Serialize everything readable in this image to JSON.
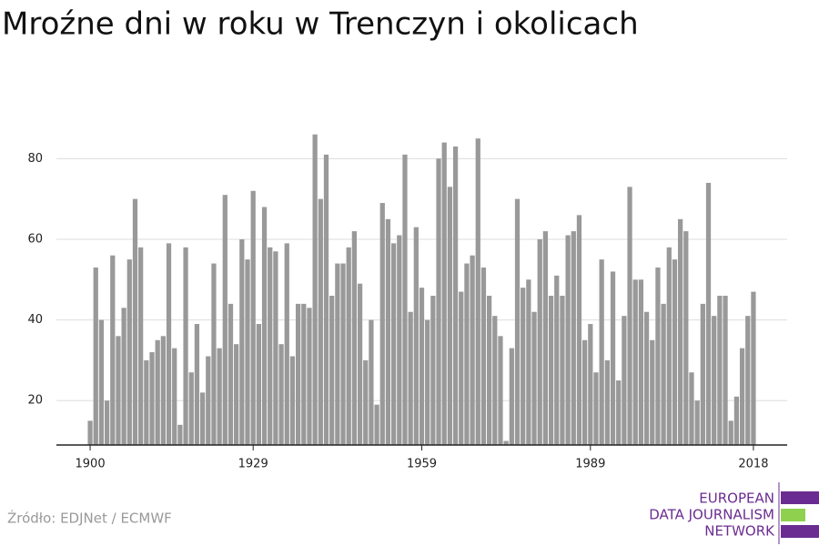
{
  "chart_data": {
    "type": "bar",
    "title": "Mroźne dni w roku w Trenczyn i okolicach",
    "x": [
      1900,
      1901,
      1902,
      1903,
      1904,
      1905,
      1906,
      1907,
      1908,
      1909,
      1910,
      1911,
      1912,
      1913,
      1914,
      1915,
      1916,
      1917,
      1918,
      1919,
      1920,
      1921,
      1922,
      1923,
      1924,
      1925,
      1926,
      1927,
      1928,
      1929,
      1930,
      1931,
      1932,
      1933,
      1934,
      1935,
      1936,
      1937,
      1938,
      1939,
      1940,
      1941,
      1942,
      1943,
      1944,
      1945,
      1946,
      1947,
      1948,
      1949,
      1950,
      1951,
      1952,
      1953,
      1954,
      1955,
      1956,
      1957,
      1958,
      1959,
      1960,
      1961,
      1962,
      1963,
      1964,
      1965,
      1966,
      1967,
      1968,
      1969,
      1970,
      1971,
      1972,
      1973,
      1974,
      1975,
      1976,
      1977,
      1978,
      1979,
      1980,
      1981,
      1982,
      1983,
      1984,
      1985,
      1986,
      1987,
      1988,
      1989,
      1990,
      1991,
      1992,
      1993,
      1994,
      1995,
      1996,
      1997,
      1998,
      1999,
      2000,
      2001,
      2002,
      2003,
      2004,
      2005,
      2006,
      2007,
      2008,
      2009,
      2010,
      2011,
      2012,
      2013,
      2014,
      2015,
      2016,
      2017,
      2018
    ],
    "values": [
      15,
      53,
      40,
      20,
      56,
      36,
      43,
      55,
      70,
      58,
      30,
      32,
      35,
      36,
      59,
      33,
      14,
      58,
      27,
      39,
      22,
      31,
      54,
      33,
      71,
      44,
      34,
      60,
      55,
      72,
      39,
      68,
      58,
      57,
      34,
      59,
      31,
      44,
      44,
      43,
      86,
      70,
      81,
      46,
      54,
      54,
      58,
      62,
      49,
      30,
      40,
      19,
      69,
      65,
      59,
      61,
      81,
      42,
      63,
      48,
      40,
      46,
      80,
      84,
      73,
      83,
      47,
      54,
      56,
      85,
      53,
      46,
      41,
      36,
      10,
      33,
      70,
      48,
      50,
      42,
      60,
      62,
      46,
      51,
      46,
      61,
      62,
      66,
      35,
      39,
      27,
      55,
      30,
      52,
      25,
      41,
      73,
      50,
      50,
      42,
      35,
      53,
      44,
      58,
      55,
      65,
      62,
      27,
      20,
      44,
      74,
      41,
      46,
      46,
      15,
      21,
      33,
      41,
      47
    ],
    "color": "#999999",
    "xlim": [
      1894,
      2024
    ],
    "xticks": [
      1900,
      1929,
      1959,
      1989,
      2018
    ],
    "ylim": [
      9,
      90
    ],
    "yticks": [
      20,
      40,
      60,
      80
    ],
    "grid": true
  },
  "source": "Źródło: EDJNet / ECMWF",
  "logo": [
    "EUROPEAN",
    "DATA JOURNALISM",
    "NETWORK"
  ]
}
